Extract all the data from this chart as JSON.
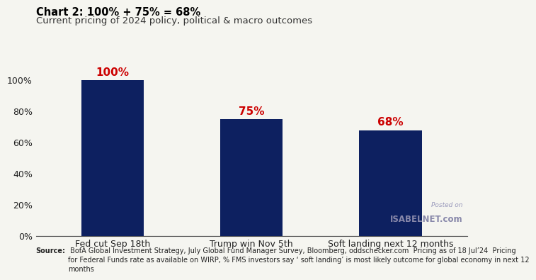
{
  "title": "Chart 2: 100% + 75% = 68%",
  "subtitle": "Current pricing of 2024 policy, political & macro outcomes",
  "categories": [
    "Fed cut Sep 18th",
    "Trump win Nov 5th",
    "Soft landing next 12 months"
  ],
  "values": [
    100,
    75,
    68
  ],
  "bar_color": "#0d2060",
  "label_color": "#cc0000",
  "label_fontsize": 11,
  "title_fontsize": 10.5,
  "subtitle_fontsize": 9.5,
  "tick_fontsize": 9,
  "ylim": [
    0,
    112
  ],
  "yticks": [
    0,
    20,
    40,
    60,
    80,
    100
  ],
  "background_color": "#f5f5f0",
  "source_text_bold": "Source:",
  "source_text": " BofA Global Investment Strategy, July Global Fund Manager Survey, Bloomberg, oddschecker.com  Pricing as of 18 Jul’24  Pricing for Federal Funds rate as available on WIRP, % FMS investors say ‘ soft landing’ is most likely outcome for global economy in next 12 months",
  "watermark_line1": "Posted on",
  "watermark_line2": "ISABELNET.com",
  "bar_width": 0.45
}
